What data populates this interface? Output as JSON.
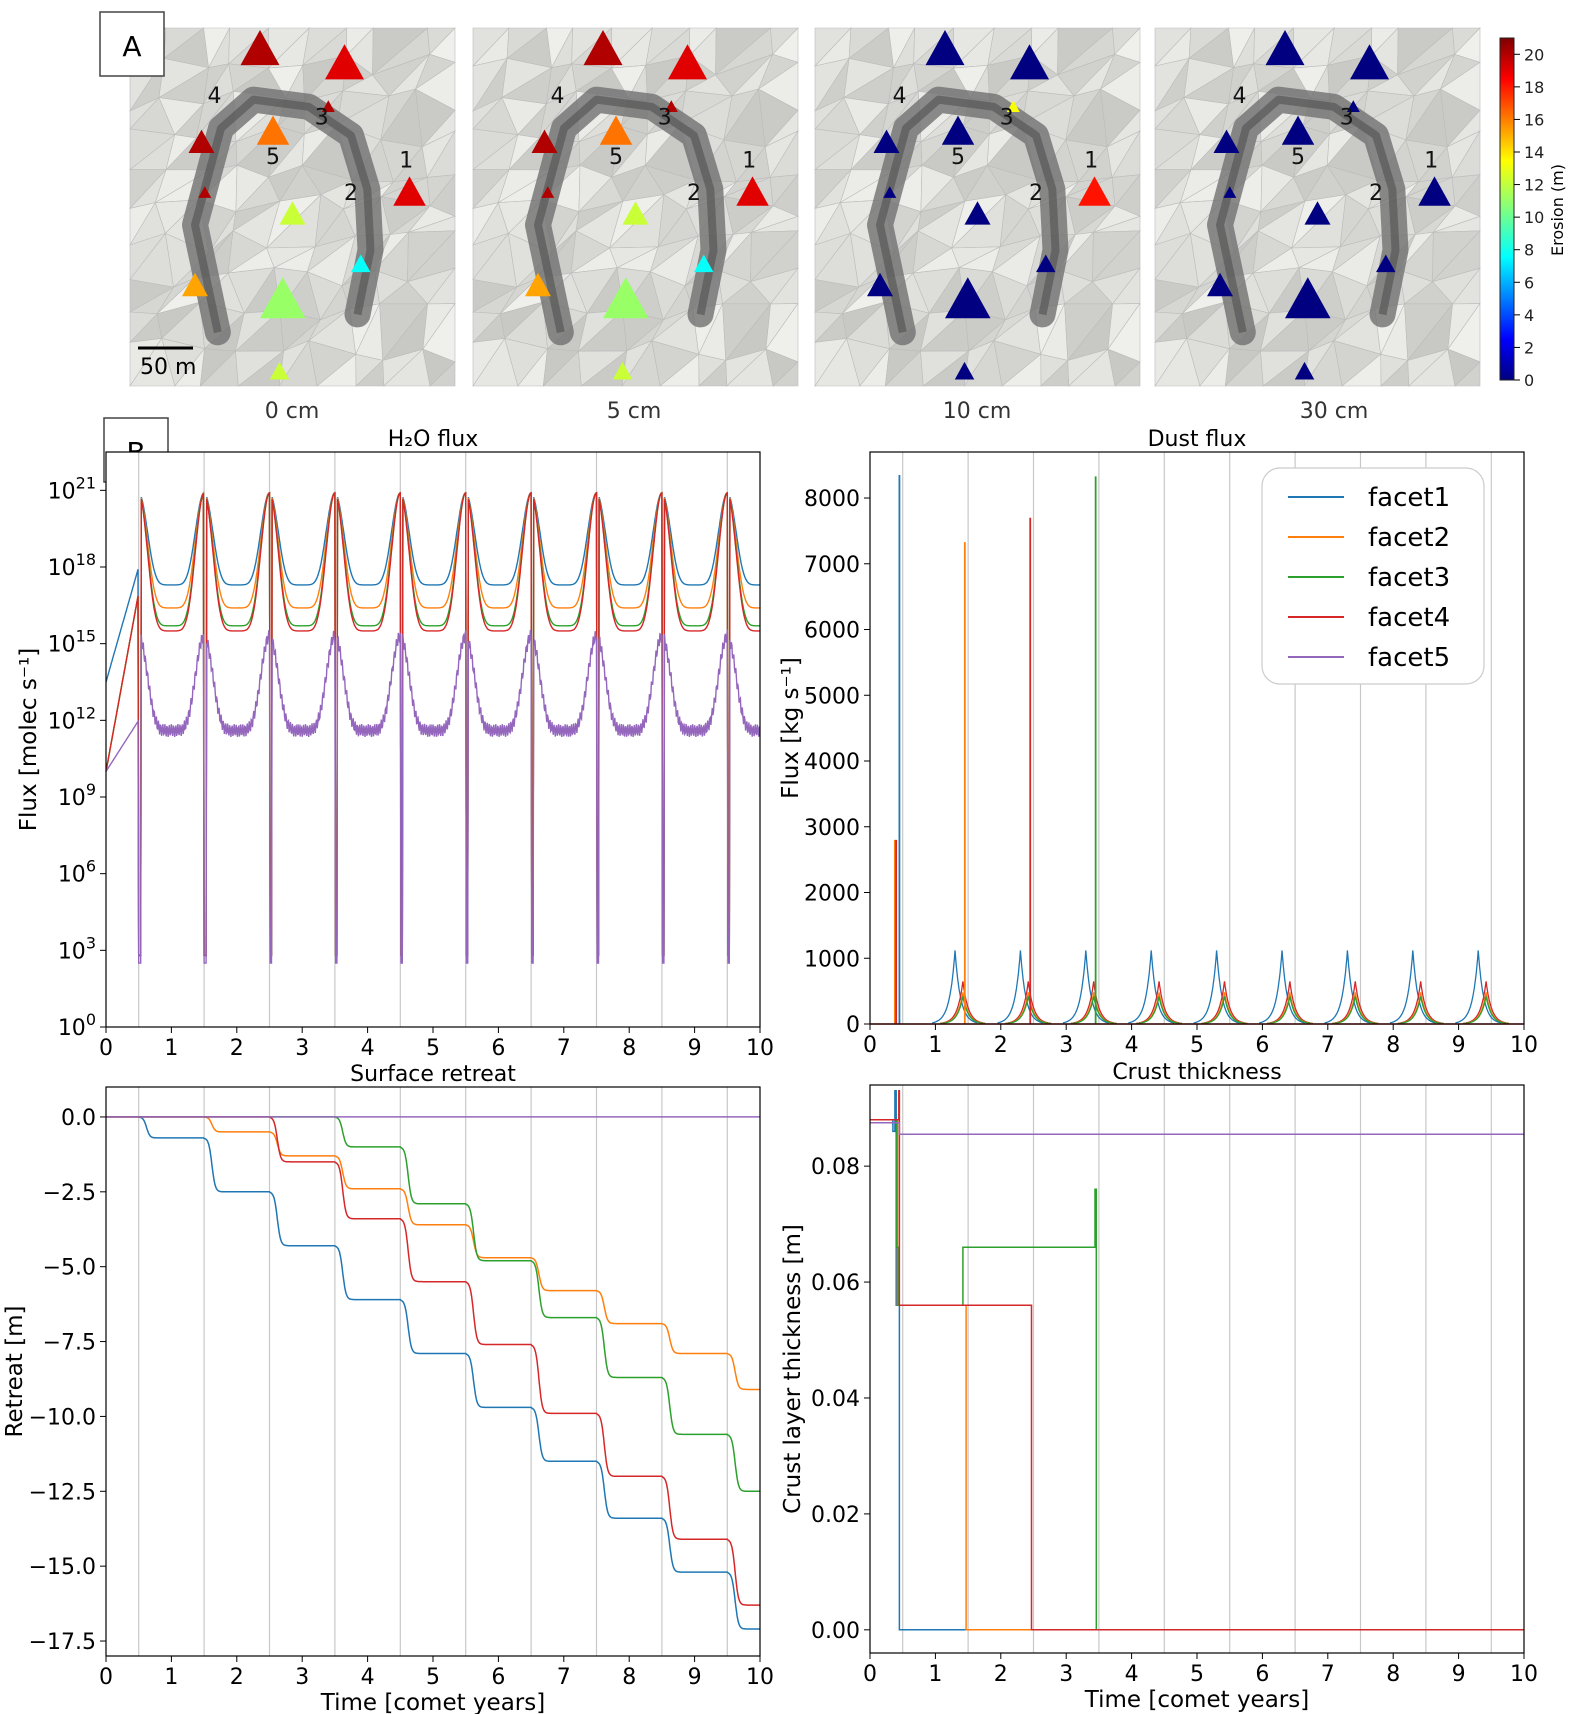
{
  "panel_labels": {
    "a": "A",
    "b": "B"
  },
  "maps": {
    "captions": [
      "0 cm",
      "5 cm",
      "10 cm",
      "30 cm"
    ],
    "scalebar_label": "50 m",
    "facet_numbers": [
      "1",
      "2",
      "3",
      "4",
      "5"
    ],
    "colorbar": {
      "label": "Erosion (m)",
      "ticks": [
        "0",
        "2",
        "4",
        "6",
        "8",
        "10",
        "12",
        "14",
        "16",
        "18",
        "20"
      ],
      "range": [
        0,
        21
      ],
      "colormap": "jet"
    }
  },
  "legend": {
    "entries": [
      {
        "name": "facet1",
        "color": "#1f77b4"
      },
      {
        "name": "facet2",
        "color": "#ff7f0e"
      },
      {
        "name": "facet3",
        "color": "#2ca02c"
      },
      {
        "name": "facet4",
        "color": "#d62728"
      },
      {
        "name": "facet5",
        "color": "#9467bd"
      }
    ],
    "placement": "top-right of Dust flux panel"
  },
  "chart_data": [
    {
      "type": "line",
      "title": "H₂O flux",
      "xlabel": "",
      "ylabel": "Flux [molec s⁻¹]",
      "yscale": "log",
      "xlim": [
        0,
        10
      ],
      "ylim_exponent": [
        0,
        22.5
      ],
      "xticks": [
        "0",
        "1",
        "2",
        "3",
        "4",
        "5",
        "6",
        "7",
        "8",
        "9",
        "10"
      ],
      "yticks": [
        {
          "base": "10",
          "exp": "0"
        },
        {
          "base": "10",
          "exp": "3"
        },
        {
          "base": "10",
          "exp": "6"
        },
        {
          "base": "10",
          "exp": "9"
        },
        {
          "base": "10",
          "exp": "12"
        },
        {
          "base": "10",
          "exp": "15"
        },
        {
          "base": "10",
          "exp": "18"
        },
        {
          "base": "10",
          "exp": "21"
        }
      ],
      "perihelion_lines": [
        0.5,
        1.5,
        2.5,
        3.5,
        4.5,
        5.5,
        6.5,
        7.5,
        8.5,
        9.5
      ],
      "series_log10": [
        {
          "name": "facet1",
          "peak": 20.9,
          "min": 17.3
        },
        {
          "name": "facet2",
          "peak": 20.9,
          "min": 16.4
        },
        {
          "name": "facet3",
          "peak": 20.9,
          "min": 15.7
        },
        {
          "name": "facet4",
          "peak": 20.9,
          "min": 15.5
        },
        {
          "name": "facet5",
          "peak": 15.3,
          "min": 11.6
        }
      ],
      "dip_bottom_log10": 2.5
    },
    {
      "type": "line",
      "title": "Dust flux",
      "xlabel": "",
      "ylabel": "Flux [kg s⁻¹]",
      "xlim": [
        0,
        10
      ],
      "ylim": [
        0,
        8700
      ],
      "xticks": [
        "0",
        "1",
        "2",
        "3",
        "4",
        "5",
        "6",
        "7",
        "8",
        "9",
        "10"
      ],
      "yticks": [
        "0",
        "1000",
        "2000",
        "3000",
        "4000",
        "5000",
        "6000",
        "7000",
        "8000"
      ],
      "perihelion_lines": [
        0.5,
        1.5,
        2.5,
        3.5,
        4.5,
        5.5,
        6.5,
        7.5,
        8.5,
        9.5
      ],
      "spikes": [
        {
          "series": "facet1",
          "x": 0.45,
          "y": 8350
        },
        {
          "series": "facet2",
          "x": 1.45,
          "y": 7330
        },
        {
          "series": "facet4",
          "x": 2.45,
          "y": 7700
        },
        {
          "series": "facet3",
          "x": 3.45,
          "y": 8330
        },
        {
          "series": "facet2",
          "x": 0.38,
          "y": 2800
        },
        {
          "series": "facet4",
          "x": 0.4,
          "y": 2800
        }
      ],
      "periodic_peaks": [
        {
          "series": "facet1",
          "y": 1120
        },
        {
          "series": "facet4",
          "y": 650
        },
        {
          "series": "facet2",
          "y": 480
        },
        {
          "series": "facet3",
          "y": 420
        }
      ]
    },
    {
      "type": "line",
      "title": "Surface retreat",
      "xlabel": "Time [comet years]",
      "ylabel": "Retreat [m]",
      "xlim": [
        0,
        10
      ],
      "ylim": [
        -18,
        1
      ],
      "xticks": [
        "0",
        "1",
        "2",
        "3",
        "4",
        "5",
        "6",
        "7",
        "8",
        "9",
        "10"
      ],
      "yticks": [
        "0.0",
        "−2.5",
        "−5.0",
        "−7.5",
        "−10.0",
        "−12.5",
        "−15.0",
        "−17.5"
      ],
      "perihelion_lines": [
        0.5,
        1.5,
        2.5,
        3.5,
        4.5,
        5.5,
        6.5,
        7.5,
        8.5,
        9.5
      ],
      "series": [
        {
          "name": "facet1",
          "start_x": 0.5,
          "steps_y": [
            0,
            -0.7,
            -2.5,
            -4.3,
            -6.1,
            -7.9,
            -9.7,
            -11.5,
            -13.4,
            -15.2,
            -17.1
          ]
        },
        {
          "name": "facet2",
          "start_x": 1.5,
          "steps_y": [
            0,
            0,
            -0.5,
            -1.3,
            -2.4,
            -3.6,
            -4.7,
            -5.8,
            -6.9,
            -7.9,
            -9.1
          ]
        },
        {
          "name": "facet3",
          "start_x": 3.5,
          "steps_y": [
            0,
            0,
            0,
            0,
            -1.0,
            -2.9,
            -4.8,
            -6.7,
            -8.7,
            -10.6,
            -12.5
          ]
        },
        {
          "name": "facet4",
          "start_x": 2.5,
          "steps_y": [
            0,
            0,
            0,
            -1.5,
            -3.4,
            -5.5,
            -7.6,
            -9.9,
            -12.0,
            -14.1,
            -16.3
          ]
        },
        {
          "name": "facet5",
          "start_x": 0,
          "steps_y": [
            0,
            0,
            0,
            0,
            0,
            0,
            0,
            0,
            0,
            0,
            0
          ]
        }
      ]
    },
    {
      "type": "line",
      "title": "Crust thickness",
      "xlabel": "Time [comet years]",
      "ylabel": "Crust layer thickness [m]",
      "xlim": [
        0,
        10
      ],
      "ylim": [
        -0.004,
        0.094
      ],
      "xticks": [
        "0",
        "1",
        "2",
        "3",
        "4",
        "5",
        "6",
        "7",
        "8",
        "9",
        "10"
      ],
      "yticks": [
        "0.00",
        "0.02",
        "0.04",
        "0.06",
        "0.08"
      ],
      "perihelion_lines": [
        0.5,
        1.5,
        2.5,
        3.5,
        4.5,
        5.5,
        6.5,
        7.5,
        8.5,
        9.5
      ],
      "series": [
        {
          "name": "facet1",
          "points": [
            [
              0,
              0.088
            ],
            [
              0.35,
              0.088
            ],
            [
              0.35,
              0.086
            ],
            [
              0.38,
              0.086
            ],
            [
              0.38,
              0.093
            ],
            [
              0.4,
              0.093
            ],
            [
              0.4,
              0.056
            ],
            [
              0.45,
              0.056
            ],
            [
              0.45,
              0
            ],
            [
              10,
              0
            ]
          ]
        },
        {
          "name": "facet2",
          "points": [
            [
              0,
              0.088
            ],
            [
              0.42,
              0.088
            ],
            [
              0.42,
              0.056
            ],
            [
              1.47,
              0.056
            ],
            [
              1.47,
              0
            ],
            [
              10,
              0
            ]
          ]
        },
        {
          "name": "facet3",
          "points": [
            [
              0,
              0.088
            ],
            [
              0.41,
              0.088
            ],
            [
              0.41,
              0.066
            ],
            [
              0.43,
              0.066
            ],
            [
              0.43,
              0.056
            ],
            [
              1.42,
              0.056
            ],
            [
              1.42,
              0.066
            ],
            [
              3.44,
              0.066
            ],
            [
              3.44,
              0.076
            ],
            [
              3.46,
              0.076
            ],
            [
              3.46,
              0
            ],
            [
              10,
              0
            ]
          ]
        },
        {
          "name": "facet4",
          "points": [
            [
              0,
              0.088
            ],
            [
              0.44,
              0.088
            ],
            [
              0.44,
              0.093
            ],
            [
              0.45,
              0.093
            ],
            [
              0.45,
              0.056
            ],
            [
              2.47,
              0.056
            ],
            [
              2.47,
              0
            ],
            [
              10,
              0
            ]
          ]
        },
        {
          "name": "facet5",
          "points": [
            [
              0,
              0.0875
            ],
            [
              0.45,
              0.0875
            ],
            [
              0.45,
              0.0855
            ],
            [
              10,
              0.0855
            ]
          ]
        }
      ]
    }
  ]
}
